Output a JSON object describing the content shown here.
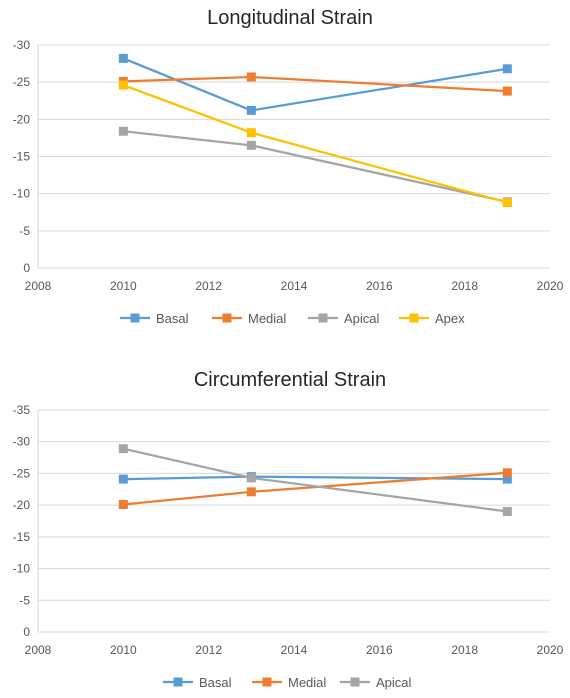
{
  "chart_data": [
    {
      "type": "line",
      "title": "Longitudinal Strain",
      "xlabel": "",
      "ylabel": "",
      "xlim": [
        2008,
        2020
      ],
      "ylim": [
        0,
        -30
      ],
      "x_ticks": [
        "2008",
        "2010",
        "2012",
        "2014",
        "2016",
        "2018",
        "2020"
      ],
      "y_ticks": [
        "0",
        "-5",
        "-10",
        "-15",
        "-20",
        "-25",
        "-30"
      ],
      "x": [
        2010,
        2013,
        2019
      ],
      "grid": "horizontal",
      "legend": "bottom",
      "series": [
        {
          "name": "Basal",
          "color": "#5b9bd5",
          "values": [
            -28.2,
            -21.2,
            -26.8
          ]
        },
        {
          "name": "Medial",
          "color": "#ed7d31",
          "values": [
            -25.1,
            -25.7,
            -23.8
          ]
        },
        {
          "name": "Apical",
          "color": "#a5a5a5",
          "values": [
            -18.4,
            -16.5,
            -8.9
          ]
        },
        {
          "name": "Apex",
          "color": "#ffc000",
          "values": [
            -24.6,
            -18.2,
            -8.8
          ]
        }
      ]
    },
    {
      "type": "line",
      "title": "Circumferential Strain",
      "xlabel": "",
      "ylabel": "",
      "xlim": [
        2008,
        2020
      ],
      "ylim": [
        0,
        -35
      ],
      "x_ticks": [
        "2008",
        "2010",
        "2012",
        "2014",
        "2016",
        "2018",
        "2020"
      ],
      "y_ticks": [
        "0",
        "-5",
        "-10",
        "-15",
        "-20",
        "-25",
        "-30",
        "-35"
      ],
      "x": [
        2010,
        2013,
        2019
      ],
      "grid": "horizontal",
      "legend": "bottom",
      "series": [
        {
          "name": "Basal",
          "color": "#5b9bd5",
          "values": [
            -24.1,
            -24.5,
            -24.1
          ]
        },
        {
          "name": "Medial",
          "color": "#ed7d31",
          "values": [
            -20.1,
            -22.1,
            -25.1
          ]
        },
        {
          "name": "Apical",
          "color": "#a5a5a5",
          "values": [
            -28.9,
            -24.3,
            -19.0
          ]
        }
      ]
    }
  ]
}
